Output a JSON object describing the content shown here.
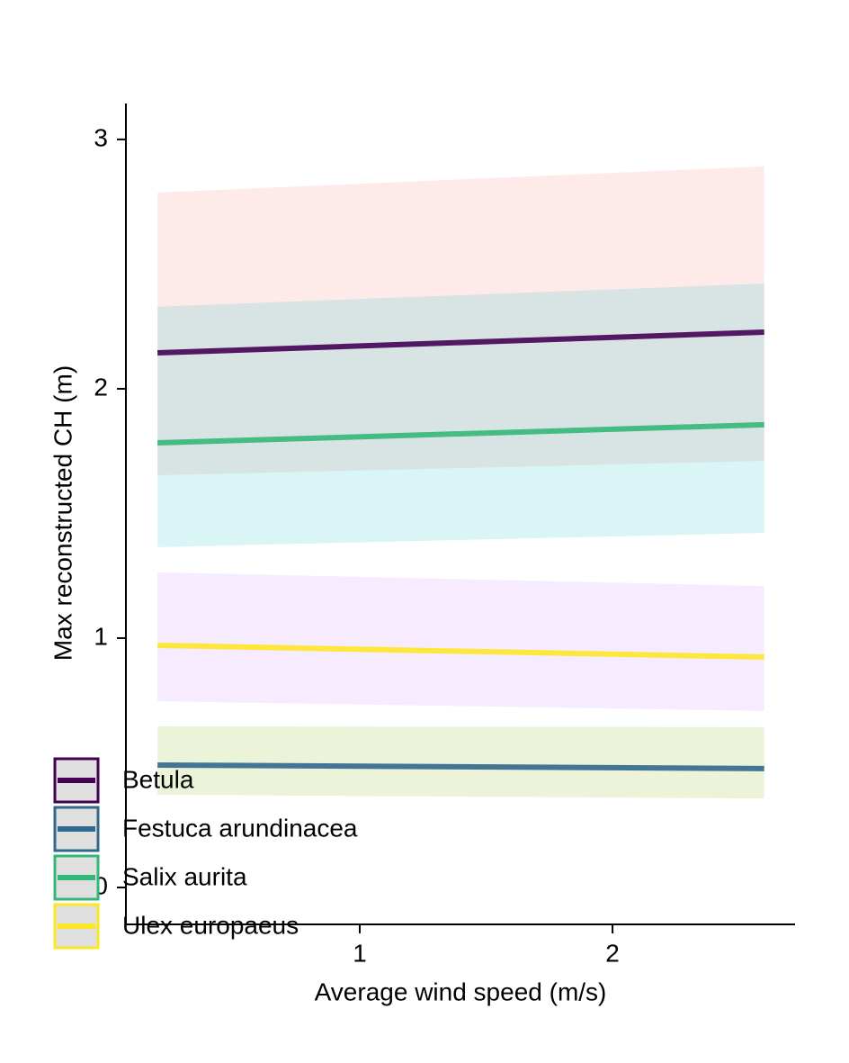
{
  "chart_data": {
    "type": "line",
    "xlabel": "Average wind speed (m/s)",
    "ylabel": "Max reconstructed CH (m)",
    "x": [
      0.2,
      2.6
    ],
    "xlim": [
      0.075,
      2.722
    ],
    "xticks": [
      1,
      2
    ],
    "ylim": [
      -0.148,
      3.144
    ],
    "yticks": [
      0,
      1,
      2,
      3
    ],
    "legend": "bottom-left",
    "series": [
      {
        "name": "Betula",
        "color": "#440154",
        "fill": "#F8766D",
        "values": [
          2.144,
          2.227
        ],
        "lower": [
          1.653,
          1.711
        ],
        "upper": [
          2.787,
          2.892
        ]
      },
      {
        "name": "Festuca arundinacea",
        "color": "#31688e",
        "fill": "#7CAE00",
        "values": [
          0.491,
          0.477
        ],
        "lower": [
          0.372,
          0.357
        ],
        "upper": [
          0.646,
          0.643
        ]
      },
      {
        "name": "Salix aurita",
        "color": "#35b779",
        "fill": "#00BFC4",
        "values": [
          1.783,
          1.856
        ],
        "lower": [
          1.365,
          1.422
        ],
        "upper": [
          2.329,
          2.422
        ]
      },
      {
        "name": "Ulex europaeus",
        "color": "#fde725",
        "fill": "#C77CFF",
        "values": [
          0.971,
          0.924
        ],
        "lower": [
          0.747,
          0.708
        ],
        "upper": [
          1.264,
          1.209
        ]
      }
    ]
  }
}
